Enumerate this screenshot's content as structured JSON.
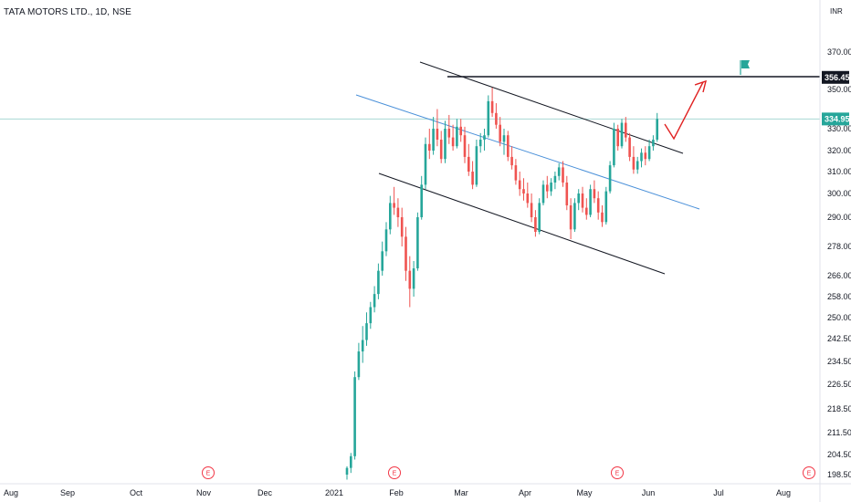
{
  "header": {
    "title": "TATA MOTORS LTD., 1D, NSE"
  },
  "currency": "INR",
  "colors": {
    "up": "#26a69a",
    "down": "#ef5350",
    "channel": "#131722",
    "midline": "#4a90d9",
    "current_line": "#a8d8d4",
    "arrow": "#e02020",
    "flag": "#26a69a",
    "earnings": "#f23645",
    "axis_text": "#131722"
  },
  "chart_data": {
    "type": "candlestick",
    "title": "TATA MOTORS LTD., 1D, NSE",
    "y_axis_labels": [
      "370.00",
      "350.00",
      "330.00",
      "320.00",
      "310.00",
      "300.00",
      "290.00",
      "278.00",
      "266.00",
      "258.00",
      "250.00",
      "242.50",
      "234.50",
      "226.50",
      "218.50",
      "211.50",
      "204.50",
      "198.50"
    ],
    "x_axis_labels": [
      "Aug",
      "Sep",
      "Oct",
      "Nov",
      "Dec",
      "2021",
      "Feb",
      "Mar",
      "Apr",
      "May",
      "Jun",
      "Jul",
      "Aug"
    ],
    "price_tags": [
      {
        "label": "356.45",
        "value": 356.45,
        "color": "#131722"
      },
      {
        "label": "334.95",
        "value": 334.95,
        "color": "#26a69a"
      }
    ],
    "earnings_markers": [
      {
        "label": "E",
        "month": "Nov"
      },
      {
        "label": "E",
        "month": "Feb"
      },
      {
        "label": "E",
        "month": "May"
      },
      {
        "label": "E",
        "month": "Aug"
      }
    ],
    "candles": [
      [
        198.5,
        201,
        197,
        200.5
      ],
      [
        200.5,
        205,
        199,
        204
      ],
      [
        204,
        231,
        203,
        229
      ],
      [
        229,
        241,
        228,
        238
      ],
      [
        238,
        247,
        234,
        242
      ],
      [
        242,
        252,
        240,
        248
      ],
      [
        248,
        256,
        246,
        254
      ],
      [
        254,
        262,
        252,
        259
      ],
      [
        259,
        271,
        257,
        268
      ],
      [
        268,
        280,
        266,
        276
      ],
      [
        276,
        288,
        274,
        285
      ],
      [
        285,
        299,
        283,
        296
      ],
      [
        296,
        303,
        291,
        294
      ],
      [
        294,
        298,
        286,
        290
      ],
      [
        290,
        294,
        278,
        282
      ],
      [
        282,
        286,
        264,
        268
      ],
      [
        268,
        274,
        254,
        261
      ],
      [
        261,
        272,
        258,
        269
      ],
      [
        269,
        292,
        268,
        290
      ],
      [
        290,
        308,
        289,
        304
      ],
      [
        304,
        326,
        302,
        323
      ],
      [
        323,
        330,
        316,
        320
      ],
      [
        320,
        336,
        318,
        330
      ],
      [
        330,
        340,
        322,
        325
      ],
      [
        325,
        329,
        314,
        316
      ],
      [
        316,
        334,
        314,
        330
      ],
      [
        330,
        337,
        323,
        326
      ],
      [
        326,
        332,
        320,
        322
      ],
      [
        322,
        335,
        321,
        331
      ],
      [
        331,
        335,
        324,
        327
      ],
      [
        327,
        331,
        314,
        317
      ],
      [
        317,
        323,
        308,
        310
      ],
      [
        310,
        315,
        302,
        304
      ],
      [
        304,
        325,
        303,
        322
      ],
      [
        322,
        328,
        319,
        325
      ],
      [
        325,
        330,
        320,
        327
      ],
      [
        327,
        347,
        326,
        344
      ],
      [
        344,
        351,
        336,
        338
      ],
      [
        338,
        343,
        330,
        332
      ],
      [
        332,
        336,
        322,
        324
      ],
      [
        324,
        330,
        318,
        327
      ],
      [
        327,
        329,
        315,
        317
      ],
      [
        317,
        322,
        311,
        313
      ],
      [
        313,
        316,
        304,
        306
      ],
      [
        306,
        310,
        299,
        302
      ],
      [
        302,
        307,
        297,
        300
      ],
      [
        300,
        305,
        294,
        296
      ],
      [
        296,
        300,
        288,
        290
      ],
      [
        290,
        293,
        282,
        284
      ],
      [
        284,
        298,
        283,
        296
      ],
      [
        296,
        306,
        295,
        304
      ],
      [
        304,
        308,
        298,
        301
      ],
      [
        301,
        307,
        299,
        305
      ],
      [
        305,
        310,
        302,
        308
      ],
      [
        308,
        314,
        306,
        312
      ],
      [
        312,
        315,
        303,
        305
      ],
      [
        305,
        308,
        293,
        295
      ],
      [
        295,
        298,
        281,
        285
      ],
      [
        285,
        298,
        284,
        296
      ],
      [
        296,
        302,
        293,
        300
      ],
      [
        300,
        303,
        292,
        294
      ],
      [
        294,
        298,
        289,
        291
      ],
      [
        291,
        304,
        290,
        302
      ],
      [
        302,
        306,
        296,
        298
      ],
      [
        298,
        301,
        289,
        292
      ],
      [
        292,
        295,
        286,
        288
      ],
      [
        288,
        303,
        287,
        301
      ],
      [
        301,
        315,
        300,
        313
      ],
      [
        313,
        333,
        312,
        330
      ],
      [
        330,
        332,
        320,
        322
      ],
      [
        322,
        335,
        321,
        333
      ],
      [
        333,
        336,
        324,
        326
      ],
      [
        326,
        328,
        315,
        317
      ],
      [
        317,
        322,
        309,
        311
      ],
      [
        311,
        317,
        309,
        315
      ],
      [
        315,
        321,
        312,
        319
      ],
      [
        319,
        322,
        313,
        316
      ],
      [
        316,
        325,
        315,
        322
      ],
      [
        322,
        327,
        320,
        325
      ],
      [
        325,
        338,
        324,
        334.95
      ]
    ]
  }
}
